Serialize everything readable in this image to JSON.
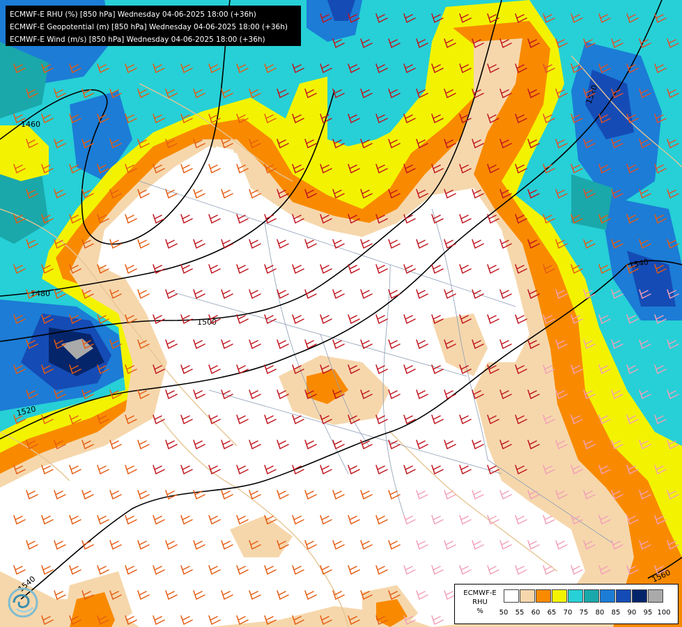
{
  "header": {
    "lines": [
      "ECMWF-E RHU (%) [850 hPa] Wednesday 04-06-2025 18:00 (+36h)",
      "ECMWF-E Geopotential (m) [850 hPa] Wednesday 04-06-2025 18:00 (+36h)",
      "ECMWF-E Wind (m/s) [850 hPa] Wednesday 04-06-2025 18:00 (+36h)"
    ]
  },
  "legend": {
    "title_lines": [
      "ECMWF-E",
      "RHU",
      "%"
    ],
    "ticks": [
      "50",
      "55",
      "60",
      "65",
      "70",
      "75",
      "80",
      "85",
      "90",
      "95",
      "100"
    ],
    "colors": [
      "#ffffff",
      "#f6d7ac",
      "#f98a00",
      "#f3f301",
      "#26d0d6",
      "#1aa8aa",
      "#1c7cd6",
      "#154bb5",
      "#05256b",
      "#aaaaaa",
      "#555555"
    ]
  },
  "contours": {
    "labels": [
      "1460",
      "1480",
      "1500",
      "1520",
      "1540",
      "1520",
      "1540",
      "1560"
    ]
  },
  "icons": {
    "logo": "ecmwf-swirl-logo-icon",
    "wind": "wind-barb-icon"
  }
}
